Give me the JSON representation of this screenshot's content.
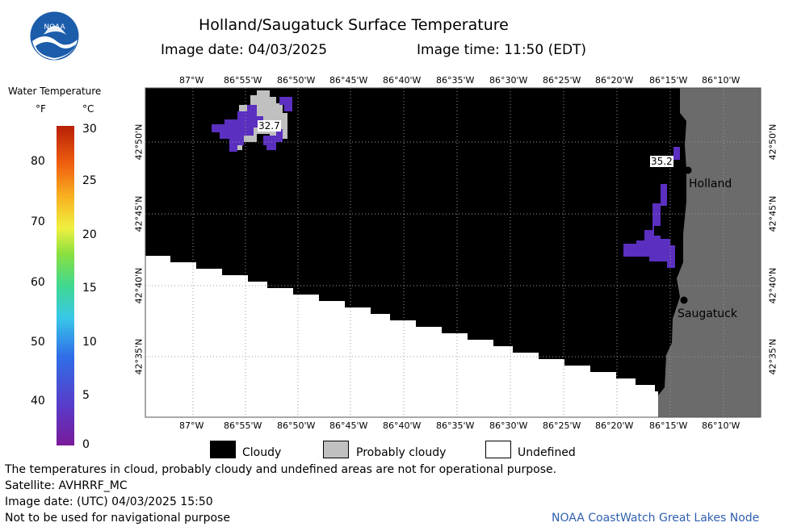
{
  "header": {
    "title": "Holland/Saugatuck Surface Temperature",
    "image_date_label": "Image date: 04/03/2025",
    "image_time_label": "Image time: 11:50 (EDT)"
  },
  "logo": {
    "text": "NOAA"
  },
  "colorbar": {
    "title": "Water Temperature",
    "unit_f": "°F",
    "unit_c": "°C",
    "f_ticks": [
      "80",
      "70",
      "60",
      "50",
      "40"
    ],
    "c_ticks": [
      "30",
      "25",
      "20",
      "15",
      "10",
      "5",
      "0"
    ]
  },
  "map": {
    "top_lon_labels": [
      "87°W",
      "86°55'W",
      "86°50'W",
      "86°45'W",
      "86°40'W",
      "86°35'W",
      "86°30'W",
      "86°25'W",
      "86°20'W",
      "86°15'W",
      "86°10'W"
    ],
    "bottom_lon_labels": [
      "87°W",
      "86°55'W",
      "86°50'W",
      "86°45'W",
      "86°40'W",
      "86°35'W",
      "86°30'W",
      "86°25'W",
      "86°20'W",
      "86°15'W",
      "86°10'W"
    ],
    "lat_labels": [
      "42°50'N",
      "42°45'N",
      "42°40'N",
      "42°35'N"
    ],
    "cities": [
      {
        "name": "Holland"
      },
      {
        "name": "Saugatuck"
      }
    ],
    "temp_labels": [
      "32.7",
      "35.2"
    ],
    "colors": {
      "cloudy": "#000000",
      "land": "#6b6b6b",
      "probably_cloudy": "#c0c0c0",
      "water_cold": "#5b2fc0",
      "undefined": "#ffffff"
    }
  },
  "legend": {
    "cloudy": "Cloudy",
    "probably_cloudy": "Probably cloudy",
    "undefined": "Undefined"
  },
  "footer": {
    "note": "The temperatures in cloud, probably cloudy and undefined areas are not for operational purpose.",
    "satellite": "Satellite: AVHRRF_MC",
    "utc_date": "Image date: (UTC) 04/03/2025  15:50",
    "nav_warning": "Not to be used for navigational purpose",
    "credit": "NOAA CoastWatch Great Lakes Node"
  }
}
